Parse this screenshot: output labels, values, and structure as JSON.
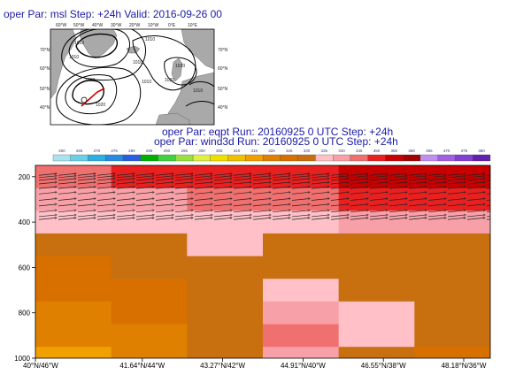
{
  "map": {
    "title": "oper Par: msl Step: +24h Valid: 2016-09-26 00",
    "lon_labels": [
      "60°W",
      "50°W",
      "40°W",
      "30°W",
      "20°W",
      "10°W",
      "0°E",
      "10°E"
    ],
    "lat_labels": [
      "70°N",
      "60°N",
      "50°N",
      "40°N"
    ],
    "isobar_labels": [
      "1020",
      "1010",
      "1010",
      "1000",
      "1010",
      "1010",
      "1020",
      "1020",
      "1020",
      "1010"
    ]
  },
  "cross_section": {
    "title_line1": "oper Par: eqpt Run: 20160925 0 UTC Step: +24h",
    "title_line2": "oper Par: wind3d Run: 20160925 0 UTC Step: +24h"
  },
  "colors": {
    "title": "#1a1aa6",
    "land": "#a9a9a9",
    "sea": "#ffffff",
    "isobar": "#000000",
    "section_line": "#d40000"
  },
  "chart_data": {
    "type": "heatmap",
    "variable": "eqpt",
    "colorbar_levels": [
      260,
      265,
      270,
      275,
      280,
      285,
      290,
      295,
      300,
      305,
      310,
      315,
      320,
      325,
      330,
      335,
      340,
      345,
      350,
      355,
      360,
      365,
      370,
      375,
      380
    ],
    "colorbar_colors": [
      "#a8e3f0",
      "#6ad0e8",
      "#2ab0e0",
      "#2a8ae0",
      "#2a5ee0",
      "#00b000",
      "#40d040",
      "#9ae040",
      "#e0f040",
      "#f0e000",
      "#f0c000",
      "#f0a000",
      "#e08000",
      "#d87000",
      "#c87010",
      "#ffc0c8",
      "#f8a0a8",
      "#f07070",
      "#e82020",
      "#c80000",
      "#a00000",
      "#c090f0",
      "#a060e0",
      "#8040d0",
      "#6020b0"
    ],
    "y_axis": {
      "ticks": [
        200,
        400,
        600,
        800,
        1000
      ],
      "ylim": [
        1000,
        150
      ]
    },
    "x_axis": {
      "ticks": [
        "40°N/46°W",
        "41.64°N/44°W",
        "43.27°N/42°W",
        "44.91°N/40°W",
        "46.55°N/38°W",
        "48.18°N/36°W"
      ]
    },
    "levels_pressure": [
      200,
      300,
      400,
      500,
      600,
      700,
      800,
      900,
      1000
    ],
    "positions": 6,
    "values": [
      [
        348,
        350,
        352,
        354,
        356,
        357
      ],
      [
        342,
        344,
        346,
        348,
        350,
        350
      ],
      [
        337,
        338,
        339,
        339,
        340,
        340
      ],
      [
        333,
        334,
        335,
        334,
        333,
        332
      ],
      [
        329,
        330,
        331,
        333,
        331,
        330
      ],
      [
        326,
        328,
        330,
        335,
        332,
        330
      ],
      [
        323,
        326,
        330,
        342,
        336,
        332
      ],
      [
        320,
        324,
        332,
        346,
        338,
        331
      ],
      [
        318,
        322,
        334,
        340,
        332,
        328
      ]
    ],
    "wind_levels": [
      190,
      200,
      212,
      228,
      248,
      272,
      300,
      325,
      352,
      372,
      385
    ],
    "wind_direction": "westerly",
    "grid": false
  }
}
